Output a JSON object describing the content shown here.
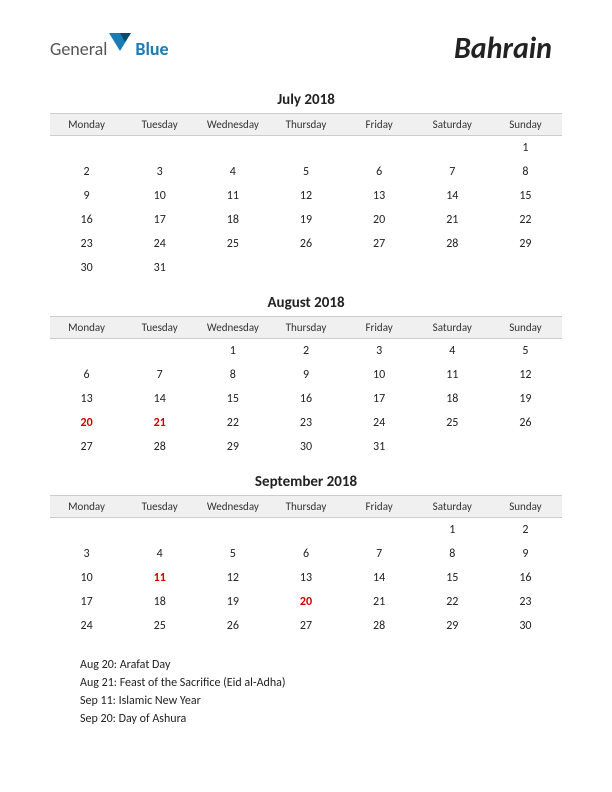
{
  "logo": {
    "general": "General",
    "blue": "Blue"
  },
  "country": "Bahrain",
  "day_headers": [
    "Monday",
    "Tuesday",
    "Wednesday",
    "Thursday",
    "Friday",
    "Saturday",
    "Sunday"
  ],
  "colors": {
    "holiday_text": "#cc0000",
    "header_bg": "#f0f0f0",
    "header_border": "#cccccc",
    "logo_blue": "#1a7bb5",
    "logo_dark": "#0d4a6b"
  },
  "months": [
    {
      "title": "July 2018",
      "weeks": [
        [
          "",
          "",
          "",
          "",
          "",
          "",
          "1"
        ],
        [
          "2",
          "3",
          "4",
          "5",
          "6",
          "7",
          "8"
        ],
        [
          "9",
          "10",
          "11",
          "12",
          "13",
          "14",
          "15"
        ],
        [
          "16",
          "17",
          "18",
          "19",
          "20",
          "21",
          "22"
        ],
        [
          "23",
          "24",
          "25",
          "26",
          "27",
          "28",
          "29"
        ],
        [
          "30",
          "31",
          "",
          "",
          "",
          "",
          ""
        ]
      ],
      "holidays": []
    },
    {
      "title": "August 2018",
      "weeks": [
        [
          "",
          "",
          "1",
          "2",
          "3",
          "4",
          "5"
        ],
        [
          "6",
          "7",
          "8",
          "9",
          "10",
          "11",
          "12"
        ],
        [
          "13",
          "14",
          "15",
          "16",
          "17",
          "18",
          "19"
        ],
        [
          "20",
          "21",
          "22",
          "23",
          "24",
          "25",
          "26"
        ],
        [
          "27",
          "28",
          "29",
          "30",
          "31",
          "",
          ""
        ]
      ],
      "holidays": [
        "20",
        "21"
      ]
    },
    {
      "title": "September 2018",
      "weeks": [
        [
          "",
          "",
          "",
          "",
          "",
          "1",
          "2"
        ],
        [
          "3",
          "4",
          "5",
          "6",
          "7",
          "8",
          "9"
        ],
        [
          "10",
          "11",
          "12",
          "13",
          "14",
          "15",
          "16"
        ],
        [
          "17",
          "18",
          "19",
          "20",
          "21",
          "22",
          "23"
        ],
        [
          "24",
          "25",
          "26",
          "27",
          "28",
          "29",
          "30"
        ]
      ],
      "holidays": [
        "11",
        "20"
      ]
    }
  ],
  "holiday_list": [
    "Aug 20: Arafat Day",
    "Aug 21: Feast of the Sacrifice (Eid al-Adha)",
    "Sep 11: Islamic New Year",
    "Sep 20: Day of Ashura"
  ]
}
